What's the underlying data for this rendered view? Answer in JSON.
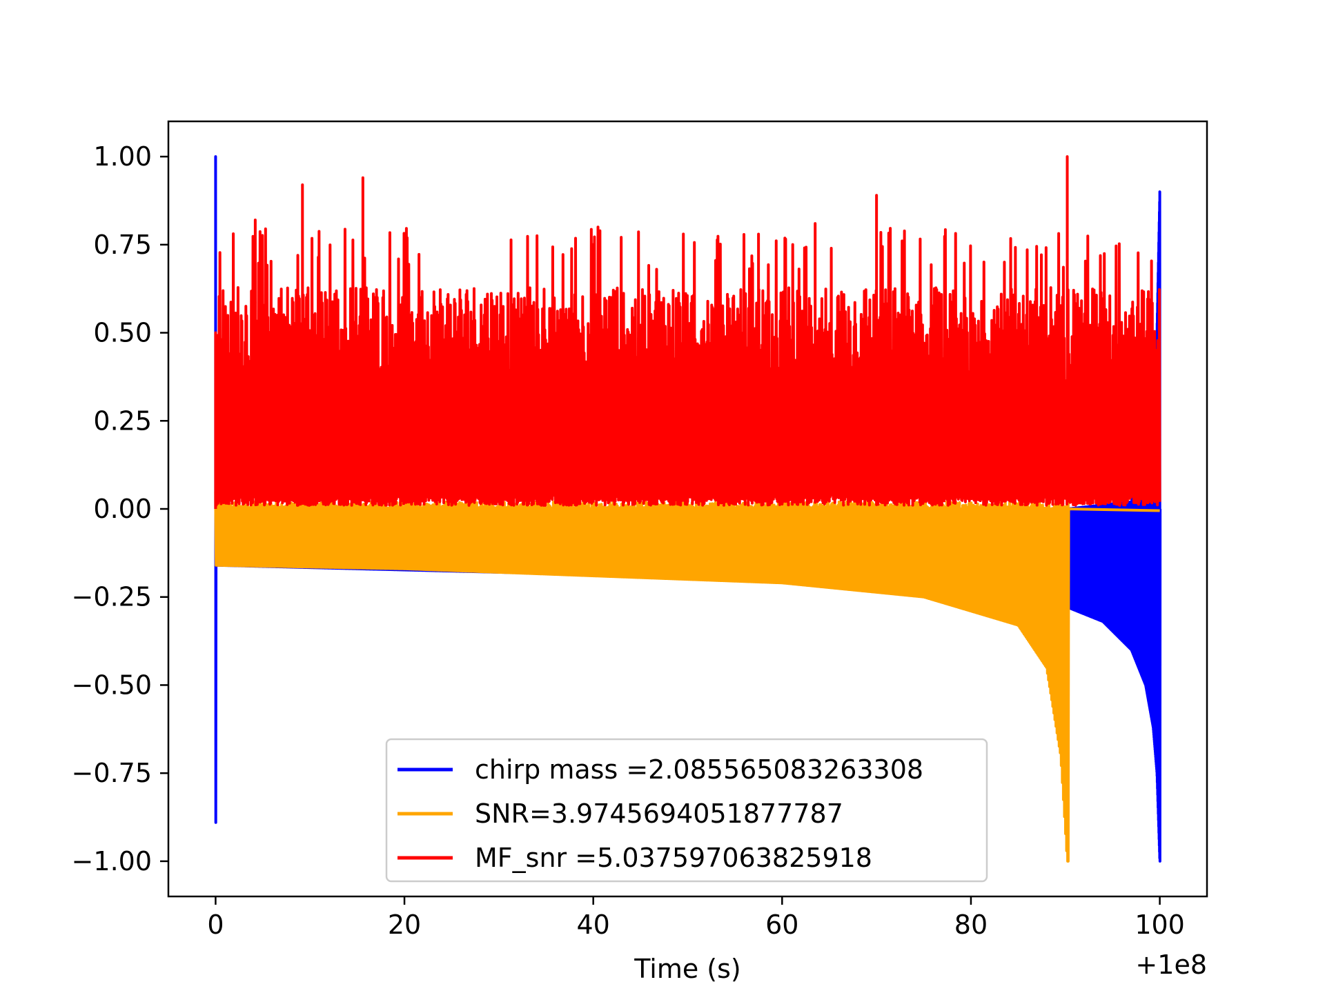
{
  "chart_data": {
    "type": "line",
    "title": "",
    "xlabel": "Time (s)",
    "ylabel": "",
    "x_offset_label": "+1e8",
    "xlim": [
      -5,
      105
    ],
    "ylim": [
      -1.1,
      1.1
    ],
    "xticks": [
      0,
      20,
      40,
      60,
      80,
      100
    ],
    "xtick_labels": [
      "0",
      "20",
      "40",
      "60",
      "80",
      "100"
    ],
    "yticks": [
      1.0,
      0.75,
      0.5,
      0.25,
      0.0,
      -0.25,
      -0.5,
      -0.75,
      -1.0
    ],
    "ytick_labels": [
      "1.00",
      "0.75",
      "0.50",
      "0.25",
      "0.00",
      "−0.25",
      "−0.50",
      "−0.75",
      "−1.00"
    ],
    "grid": false,
    "legend_position": "lower center",
    "series": [
      {
        "name": "chirp mass =2.085565083263308",
        "color": "#0000ff",
        "shape": "blue chirp waveform beginning at x=0 and ending at x=100",
        "x_start": 0,
        "x_end": 100,
        "peak_start": 1.0,
        "trough_start": -0.89,
        "peak_end": 0.9,
        "trough_end": -1.0
      },
      {
        "name": "SNR=3.9745694051877787",
        "color": "#ffa500",
        "shape": "orange chirp waveform from x=0 ending near x=90",
        "x_start": 0,
        "x_end": 90.3,
        "lower_envelope": [
          [
            0,
            -0.16
          ],
          [
            20,
            -0.17
          ],
          [
            40,
            -0.19
          ],
          [
            60,
            -0.21
          ],
          [
            75,
            -0.25
          ],
          [
            85,
            -0.33
          ],
          [
            88,
            -0.45
          ],
          [
            89.5,
            -0.7
          ],
          [
            90.2,
            -1.0
          ]
        ],
        "upper_envelope_base": 0.0
      },
      {
        "name": "MF_snr =5.037597063825918",
        "color": "#ff0000",
        "shape": "red noisy matched-filter SNR trace from x=0 to x=100",
        "x_start": 0,
        "x_end": 100,
        "baseline": 0.01,
        "typical_max": 0.65,
        "peaks": [
          [
            0,
            0.5
          ],
          [
            9.2,
            0.92
          ],
          [
            15.6,
            0.94
          ],
          [
            4.2,
            0.82
          ],
          [
            40.5,
            0.8
          ],
          [
            57.5,
            0.78
          ],
          [
            63.5,
            0.81
          ],
          [
            70,
            0.89
          ],
          [
            90.2,
            1.0
          ]
        ]
      }
    ]
  }
}
